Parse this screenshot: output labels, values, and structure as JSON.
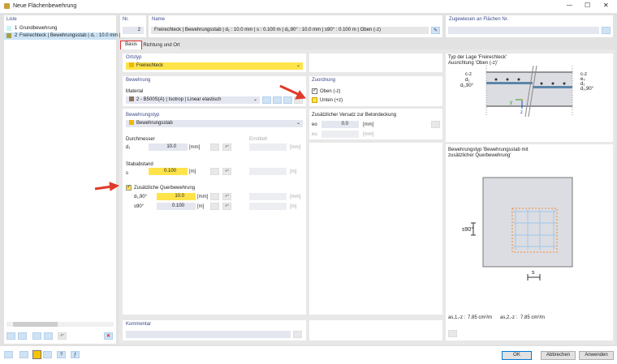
{
  "window": {
    "title": "Neue Flächenbewehrung",
    "minimize": "—",
    "maximize": "☐",
    "close": "✕"
  },
  "list": {
    "header": "Liste",
    "items": [
      {
        "nr": "1",
        "label": "Grundbewehrung",
        "color": "#c8f4f8"
      },
      {
        "nr": "2",
        "label": "Freirechteck | Bewehrungsstab | d₁ : 10.0 mm | s :",
        "color": "#a8a040"
      }
    ]
  },
  "nr": {
    "label": "Nr.",
    "value": "2"
  },
  "name": {
    "label": "Name",
    "value": "Freirechteck | Bewehrungsstab | d₁ : 10.0 mm | s : 0.100 m | d₁,90° : 10.0 mm | s90° : 0.100 m | Oben (-z)"
  },
  "assigned": {
    "label": "Zugewiesen an Flächen Nr.",
    "value": ""
  },
  "tabs": [
    "Basis",
    "Richtung und Ort"
  ],
  "ortstyp": {
    "header": "Ortstyp",
    "value": "Freirechteck"
  },
  "bewehrung": {
    "header": "Bewehrung",
    "material_label": "Material",
    "material_value": "2 - B500S(A) | Isotrop | Linear elastisch"
  },
  "bewehrungstyp": {
    "header": "Bewehrungstyp",
    "value": "Bewehrungsstab"
  },
  "durchmesser": {
    "header": "Durchmesser",
    "ermittelt": "Ermittelt",
    "symbol": "d₁",
    "value": "10.0",
    "unit": "[mm]"
  },
  "stababstand": {
    "header": "Stababstand",
    "symbol": "s",
    "value": "0.100",
    "unit": "[m]"
  },
  "quer": {
    "label": "Zusätzliche Querbewehrung",
    "checked": true,
    "d_symbol": "d₁,90°",
    "d_value": "10.0",
    "d_unit": "[mm]",
    "s_symbol": "s90°",
    "s_value": "0.100",
    "s_unit": "[m]"
  },
  "zuordnung": {
    "header": "Zuordnung",
    "oben": "Oben (-z)",
    "oben_checked": true,
    "unten": "Unten (+z)",
    "unten_checked": false
  },
  "versatz": {
    "header": "Zusätzlicher Versatz zur Betondeckung",
    "eo_symbol": "eo",
    "eo_value": "0.0",
    "eo_unit": "[mm]",
    "eu_symbol": "eu",
    "eu_unit": "[mm]"
  },
  "kommentar": {
    "header": "Kommentar",
    "value": ""
  },
  "diagram1": {
    "title1": "Typ der Lage 'Freirechteck'",
    "title2": "Ausrichtung 'Oben (-z)'",
    "left_labels": [
      "c-z",
      "d₁",
      "d₁,90°"
    ],
    "right_labels": [
      "c-z",
      "e₀",
      "d₁",
      "d₁,90°"
    ],
    "axis_y": "y",
    "axis_z": "z"
  },
  "diagram2": {
    "title1": "Bewehrungstyp 'Bewehrungsstab mit",
    "title2": "zusätzlicher Querbewehrung'",
    "s90": "s90°",
    "s": "s",
    "as1_label": "as,1,-z :",
    "as1_value": "7.85 cm²/m",
    "as2_label": "as,2,-z :",
    "as2_value": "7.85 cm²/m"
  },
  "buttons": {
    "ok": "OK",
    "cancel": "Abbrechen",
    "apply": "Anwenden"
  },
  "colors": {
    "accent_yellow": "#ffe34a",
    "highlight_red": "#e03030"
  }
}
